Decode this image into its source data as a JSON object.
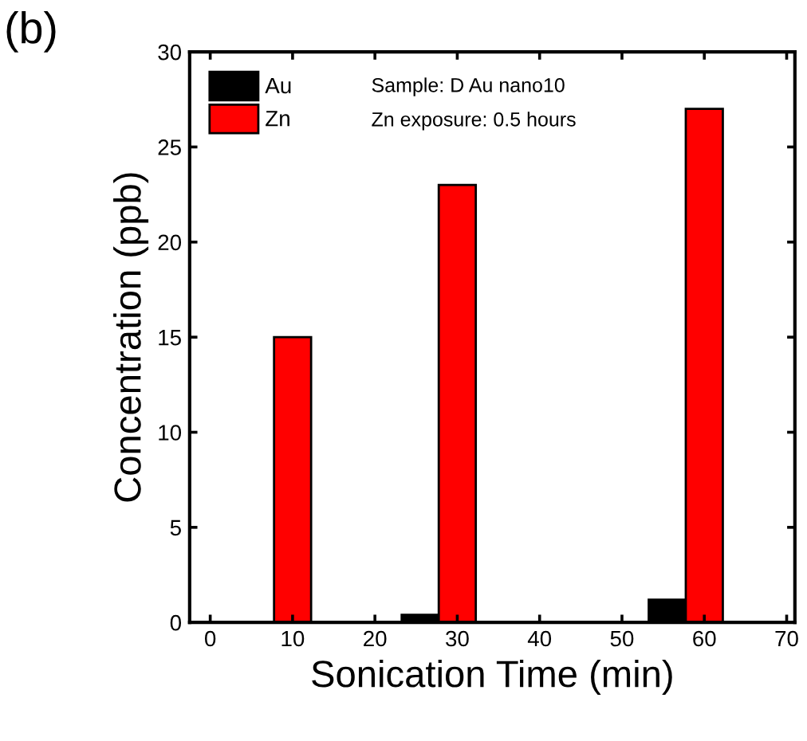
{
  "chart_data": {
    "type": "bar",
    "xlabel": "Sonication Time (min)",
    "ylabel": "Concentration (ppb)",
    "x": [
      10,
      30,
      60
    ],
    "series": [
      {
        "name": "Au",
        "color": "#000000",
        "values": [
          0,
          0.4,
          1.2
        ]
      },
      {
        "name": "Zn",
        "color": "#ff0000",
        "values": [
          15,
          23,
          27
        ]
      }
    ],
    "xlim": [
      -2.5,
      71
    ],
    "xticks": [
      0,
      10,
      20,
      30,
      40,
      50,
      60,
      70
    ],
    "ylim": [
      0,
      30
    ],
    "yticks": [
      0,
      5,
      10,
      15,
      20,
      25,
      30
    ],
    "legend": "top left",
    "grid": false,
    "annotations": [
      "(b)",
      "Sample: D Au nano10",
      "Zn exposure: 0.5 hours"
    ]
  }
}
